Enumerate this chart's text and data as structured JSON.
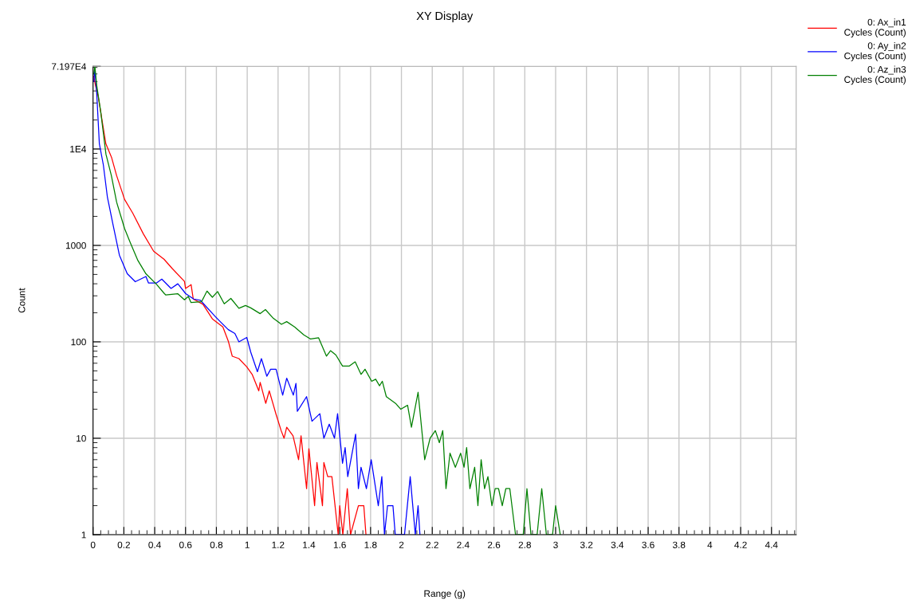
{
  "chart_data": {
    "type": "line",
    "title": "XY Display",
    "xlabel": "Range (g)",
    "ylabel": "Count",
    "xlim": [
      0,
      4.56
    ],
    "xticks": [
      0,
      0.2,
      0.4,
      0.6,
      0.8,
      1,
      1.2,
      1.4,
      1.6,
      1.8,
      2,
      2.2,
      2.4,
      2.6,
      2.8,
      3,
      3.2,
      3.4,
      3.6,
      3.8,
      4,
      4.2,
      4.4
    ],
    "ylim": [
      1,
      71970
    ],
    "yticks": [
      1,
      10,
      100,
      1000,
      {
        "value": 10000,
        "label": "1E4"
      },
      {
        "value": 71970,
        "label": "7.197E4"
      }
    ],
    "log": "y",
    "grid": true,
    "legend": "top right",
    "line_style": "solid",
    "series": [
      {
        "name": "0: Ax_in1\nCycles (Count)",
        "color": "#ff0000",
        "x": [
          0.005,
          0.016,
          0.033,
          0.083,
          0.12,
          0.153,
          0.205,
          0.257,
          0.326,
          0.393,
          0.46,
          0.515,
          0.593,
          0.6,
          0.636,
          0.65,
          0.713,
          0.774,
          0.842,
          0.877,
          0.903,
          0.946,
          0.997,
          1.032,
          1.075,
          1.084,
          1.12,
          1.143,
          1.187,
          1.22,
          1.239,
          1.256,
          1.297,
          1.333,
          1.349,
          1.385,
          1.4,
          1.437,
          1.452,
          1.488,
          1.497,
          1.522,
          1.549,
          1.59,
          1.6,
          1.62,
          1.649,
          1.67,
          1.721,
          1.756,
          1.77
        ],
        "values": [
          57000,
          45400,
          35500,
          11350,
          8200,
          5300,
          2990,
          2170,
          1320,
          870,
          720,
          573,
          423,
          358,
          392,
          278,
          245,
          173,
          143,
          102,
          71,
          67,
          55,
          46,
          31,
          38,
          23,
          31,
          17.7,
          12,
          10,
          13,
          10.6,
          6,
          10.6,
          3,
          7.8,
          2,
          5.6,
          2,
          5.6,
          4,
          4,
          1,
          2,
          1,
          3,
          1,
          2,
          2,
          1
        ]
      },
      {
        "name": "0: Ay_in2\nCycles (Count)",
        "color": "#0000ff",
        "x": [
          0.005,
          0.012,
          0.024,
          0.041,
          0.067,
          0.093,
          0.128,
          0.171,
          0.222,
          0.274,
          0.343,
          0.36,
          0.411,
          0.446,
          0.506,
          0.55,
          0.601,
          0.653,
          0.696,
          0.791,
          0.825,
          0.877,
          0.92,
          0.946,
          0.997,
          1.023,
          1.066,
          1.092,
          1.127,
          1.152,
          1.187,
          1.23,
          1.256,
          1.299,
          1.316,
          1.325,
          1.385,
          1.42,
          1.471,
          1.497,
          1.532,
          1.566,
          1.586,
          1.618,
          1.635,
          1.652,
          1.703,
          1.721,
          1.738,
          1.773,
          1.804,
          1.85,
          1.873,
          1.89,
          1.91,
          1.945,
          1.96,
          2.02,
          2.057,
          2.09,
          2.108,
          2.12
        ],
        "values": [
          50000,
          66800,
          37800,
          11350,
          6830,
          3190,
          1690,
          792,
          508,
          420,
          476,
          407,
          407,
          447,
          358,
          400,
          316,
          278,
          270,
          184,
          162,
          134,
          122,
          100,
          111,
          78,
          49,
          67,
          44,
          52,
          52,
          28,
          42,
          28,
          37,
          19,
          27,
          15,
          18,
          10,
          14,
          10,
          18,
          5.5,
          8,
          4,
          11,
          3,
          5,
          3,
          6,
          2,
          4,
          1,
          2,
          2,
          1,
          1,
          4,
          1,
          2,
          1
        ]
      },
      {
        "name": "0: Az_in3\nCycles (Count)",
        "color": "#008000",
        "x": [
          0.005,
          0.012,
          0.024,
          0.05,
          0.084,
          0.119,
          0.153,
          0.205,
          0.24,
          0.291,
          0.343,
          0.412,
          0.463,
          0.472,
          0.549,
          0.593,
          0.618,
          0.635,
          0.704,
          0.739,
          0.774,
          0.808,
          0.851,
          0.894,
          0.946,
          0.989,
          1.023,
          1.084,
          1.118,
          1.17,
          1.222,
          1.256,
          1.307,
          1.367,
          1.411,
          1.463,
          1.514,
          1.54,
          1.575,
          1.618,
          1.661,
          1.7,
          1.738,
          1.764,
          1.807,
          1.833,
          1.858,
          1.876,
          1.902,
          1.962,
          1.996,
          2.04,
          2.065,
          2.108,
          2.151,
          2.186,
          2.22,
          2.246,
          2.268,
          2.289,
          2.315,
          2.35,
          2.384,
          2.406,
          2.423,
          2.444,
          2.475,
          2.496,
          2.517,
          2.539,
          2.561,
          2.587,
          2.608,
          2.63,
          2.654,
          2.677,
          2.703,
          2.74,
          2.79,
          2.814,
          2.84,
          2.88,
          2.91,
          2.94,
          2.98,
          3.0,
          3.03
        ],
        "values": [
          60000,
          71970,
          45700,
          24300,
          8800,
          5300,
          2810,
          1490,
          1085,
          697,
          508,
          394,
          316,
          306,
          316,
          273,
          296,
          256,
          261,
          336,
          290,
          332,
          248,
          282,
          223,
          238,
          225,
          196,
          216,
          175,
          152,
          162,
          143,
          118,
          107,
          110,
          71,
          81,
          73,
          56,
          56,
          62,
          46,
          52,
          39,
          41,
          35,
          39,
          27,
          23,
          20,
          22,
          13,
          30,
          6,
          10,
          12,
          9,
          12,
          3,
          7,
          5,
          7,
          5,
          8,
          3,
          5,
          2,
          6,
          3,
          4,
          2,
          3,
          3,
          2,
          3,
          3,
          1,
          1,
          3,
          1,
          1,
          3,
          1,
          1,
          2,
          1
        ]
      }
    ]
  }
}
